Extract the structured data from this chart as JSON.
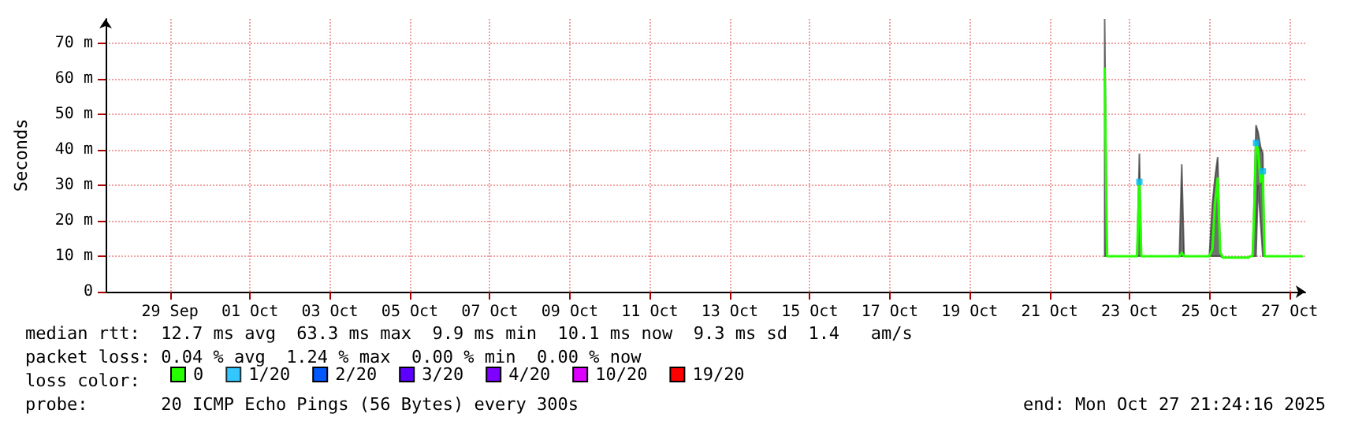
{
  "chart_data": {
    "type": "line",
    "ylabel": "Seconds",
    "annotations": [
      "median rtt:  12.7 ms avg  63.3 ms max  9.9 ms min  10.1 ms now  9.3 ms sd  1.4   am/s",
      "packet loss: 0.04 % avg  1.24 % max  0.00 % min  0.00 % now",
      "probe:       20 ICMP Echo Pings (56 Bytes) every 300s",
      "end: Mon Oct 27 21:24:16 2025"
    ],
    "legend_title": "loss color:",
    "legend": "bottom",
    "grid": true,
    "line_style": "solid",
    "marker": "none",
    "xlim": [
      "2025-09-27T21:24",
      "2025-10-27T21:24"
    ],
    "xticks": [
      {
        "value": "2025-09-29T12:00",
        "label": "29 Sep"
      },
      {
        "value": "2025-10-01T12:00",
        "label": "01 Oct"
      },
      {
        "value": "2025-10-03T12:00",
        "label": "03 Oct"
      },
      {
        "value": "2025-10-05T12:00",
        "label": "05 Oct"
      },
      {
        "value": "2025-10-07T12:00",
        "label": "07 Oct"
      },
      {
        "value": "2025-10-09T12:00",
        "label": "09 Oct"
      },
      {
        "value": "2025-10-11T12:00",
        "label": "11 Oct"
      },
      {
        "value": "2025-10-13T12:00",
        "label": "13 Oct"
      },
      {
        "value": "2025-10-15T12:00",
        "label": "15 Oct"
      },
      {
        "value": "2025-10-17T12:00",
        "label": "17 Oct"
      },
      {
        "value": "2025-10-19T12:00",
        "label": "19 Oct"
      },
      {
        "value": "2025-10-21T12:00",
        "label": "21 Oct"
      },
      {
        "value": "2025-10-23T12:00",
        "label": "23 Oct"
      },
      {
        "value": "2025-10-25T12:00",
        "label": "25 Oct"
      },
      {
        "value": "2025-10-27T12:00",
        "label": "27 Oct"
      }
    ],
    "ylim": [
      0,
      77
    ],
    "yticks": [
      0,
      {
        "value": 10,
        "label": "10 m"
      },
      {
        "value": 20,
        "label": "20 m"
      },
      {
        "value": 30,
        "label": "30 m"
      },
      {
        "value": 40,
        "label": "40 m"
      },
      {
        "value": 50,
        "label": "50 m"
      },
      {
        "value": 60,
        "label": "60 m"
      },
      {
        "value": 70,
        "label": "70 m"
      }
    ],
    "series": [
      {
        "name": "0",
        "color": "#26ff00",
        "x": [
          "2025-10-22T21:00",
          "2025-10-22T22:24",
          "2025-10-23T16:25",
          "2025-10-23T17:50",
          "2025-10-23T19:00",
          "2025-10-24T17:50",
          "2025-10-24T19:15",
          "2025-10-24T20:40",
          "2025-10-25T11:48",
          "2025-10-25T13:40",
          "2025-10-25T15:10",
          "2025-10-25T16:50",
          "2025-10-25T18:20",
          "2025-10-25T20:10",
          "2025-10-26T11:20",
          "2025-10-26T12:20",
          "2025-10-26T13:45",
          "2025-10-26T14:40",
          "2025-10-26T15:50",
          "2025-10-26T17:05",
          "2025-10-26T18:30",
          "2025-10-26T19:55",
          "2025-10-26T20:55",
          "2025-10-27T19:30"
        ],
        "values": [
          63,
          10,
          10,
          31,
          10,
          10,
          11,
          10,
          10,
          12,
          24.5,
          32,
          11,
          9.6,
          9.6,
          10,
          10,
          22,
          42,
          40,
          31,
          34,
          10,
          10
        ],
        "lower": [
          10,
          10,
          10,
          10,
          10,
          10,
          10,
          10,
          10,
          10,
          10,
          10,
          10,
          9.6,
          9.6,
          10,
          10,
          10,
          10,
          30,
          20,
          10,
          10,
          10
        ],
        "upper": [
          77,
          10,
          10,
          39,
          10,
          10,
          36,
          10,
          10,
          25,
          32,
          38,
          11,
          9.6,
          9.6,
          10,
          10,
          25,
          47,
          45,
          41,
          39,
          10,
          10
        ]
      },
      {
        "name": "1/20",
        "color": "#00b8ff",
        "type": "scatter",
        "marker": "square",
        "x": [
          "2025-10-23T17:50",
          "2025-10-26T15:50",
          "2025-10-26T19:55"
        ],
        "values": [
          31,
          42,
          34
        ]
      },
      {
        "name": "2/20",
        "color": "#0059ff",
        "type": "line"
      },
      {
        "name": "3/20",
        "color": "#5e00ff",
        "type": "line"
      },
      {
        "name": "4/20",
        "color": "#7e00ff",
        "type": "line"
      },
      {
        "name": "10/20",
        "color": "#dd00ff",
        "type": "line"
      },
      {
        "name": "19/20",
        "color": "#ff0000",
        "type": "line"
      }
    ]
  }
}
